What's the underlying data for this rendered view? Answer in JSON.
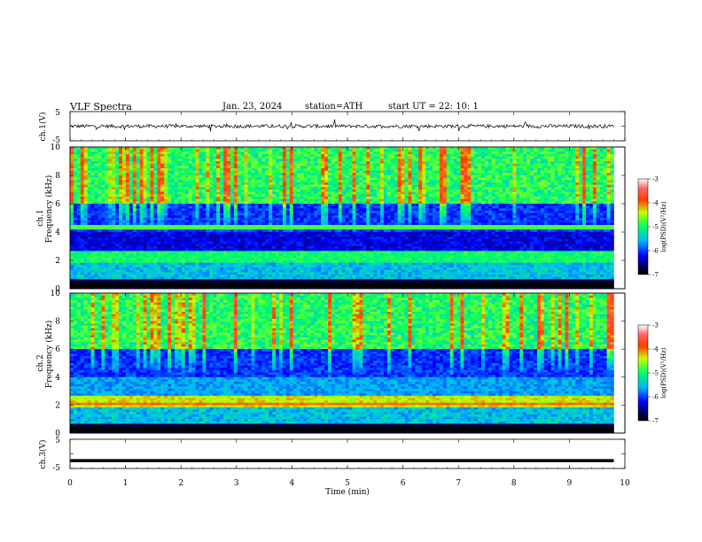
{
  "header": {
    "title": "VLF  Spectra",
    "date": "Jan. 23, 2024",
    "station": "station=ATH",
    "start": "start  UT  =    22: 10: 1"
  },
  "chart_data": [
    {
      "type": "line",
      "panel": "ch1-voltage",
      "ylabel": "ch.1(V)",
      "ylim": [
        -5,
        5
      ],
      "yticks": [
        "5",
        "-5"
      ],
      "description_series": "noisy waveform centered near 0 V",
      "mean_value": 0,
      "amplitude": 0.6
    },
    {
      "type": "heatmap",
      "panel": "ch1-spectrogram",
      "ylabel_1": "ch.1",
      "ylabel_2": "Frequency  (kHz)",
      "ylim": [
        0,
        10
      ],
      "yticks": [
        "0",
        "2",
        "4",
        "6",
        "8",
        "10"
      ],
      "xlim": [
        0,
        10
      ],
      "colorbar": {
        "label": "log(PSD)(V²/Hz)",
        "range": [
          -7,
          -3
        ],
        "ticks": [
          "-3",
          "-4",
          "-5",
          "-6",
          "-7"
        ]
      }
    },
    {
      "type": "heatmap",
      "panel": "ch2-spectrogram",
      "ylabel_1": "ch.2",
      "ylabel_2": "Frequency  (kHz)",
      "ylim": [
        0,
        10
      ],
      "yticks": [
        "0",
        "2",
        "4",
        "6",
        "8",
        "10"
      ],
      "xlim": [
        0,
        10
      ],
      "colorbar": {
        "label": "log(PSD)(V²/Hz)",
        "range": [
          -7,
          -3
        ],
        "ticks": [
          "-3",
          "-4",
          "-5",
          "-6",
          "-7"
        ]
      }
    },
    {
      "type": "line",
      "panel": "ch3-voltage",
      "ylabel": "ch.3(V)",
      "ylim": [
        -5,
        5
      ],
      "yticks": [
        "5",
        "-5"
      ],
      "mean_value": -2.3,
      "amplitude": 0
    }
  ],
  "xaxis": {
    "label": "Time  (min)",
    "ticks": [
      "0",
      "1",
      "2",
      "3",
      "4",
      "5",
      "6",
      "7",
      "8",
      "9",
      "10"
    ],
    "range": [
      0,
      10
    ]
  },
  "colors": {
    "scale": [
      "#000000",
      "#000080",
      "#0000ff",
      "#00c8ff",
      "#00ff80",
      "#ffff00",
      "#ff0000",
      "#ffffff"
    ]
  }
}
